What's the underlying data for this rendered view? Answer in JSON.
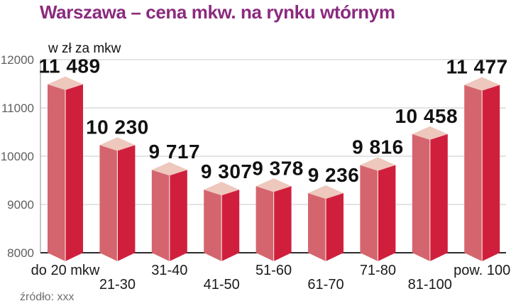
{
  "title": "Warszawa – cena mkw. na rynku wtórnym",
  "y_axis_label": "w zł za mkw",
  "source": "źródło: xxx",
  "chart_data": {
    "type": "bar",
    "style": "3d-columns",
    "title": "Warszawa – cena mkw. na rynku wtórnym",
    "xlabel": "",
    "ylabel": "w zł za mkw",
    "categories": [
      "do 20 mkw",
      "21-30",
      "31-40",
      "41-50",
      "51-60",
      "61-70",
      "71-80",
      "81-100",
      "pow. 100"
    ],
    "values": [
      11489,
      10230,
      9717,
      9307,
      9378,
      9236,
      9816,
      10458,
      11477
    ],
    "value_labels": [
      "11 489",
      "10 230",
      "9 717",
      "9 307",
      "9 378",
      "9 236",
      "9 816",
      "10 458",
      "11 477"
    ],
    "ylim": [
      8000,
      12000
    ],
    "yticks": [
      8000,
      9000,
      10000,
      11000,
      12000
    ],
    "grid": true,
    "legend": false
  },
  "colors": {
    "title": "#8b2a7e",
    "bar_front": "#d01f3d",
    "bar_side": "#d4656e",
    "bar_top": "#eec7bd",
    "bar_edge_highlight": "#f6ddd7",
    "grid_line": "#c9c9c9",
    "axis_line": "#8f8f8f",
    "baseline": "#2b2b2b",
    "tick_text": "#5f5f5f",
    "source_text": "#6e6e6e"
  }
}
